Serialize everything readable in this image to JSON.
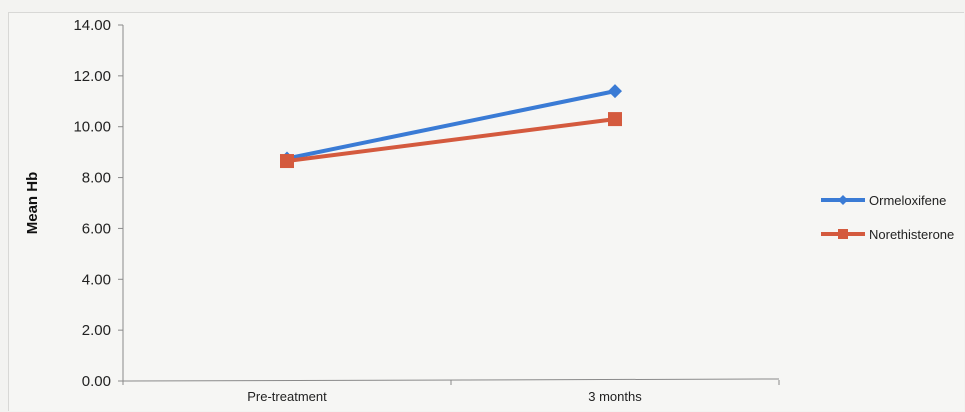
{
  "chart_data": {
    "type": "line",
    "categories": [
      "Pre-treatment",
      "3 months"
    ],
    "series": [
      {
        "name": "Ormeloxifene",
        "values": [
          8.75,
          11.4
        ],
        "color": "#3a7bd5",
        "marker": "diamond"
      },
      {
        "name": "Norethisterone",
        "values": [
          8.65,
          10.3
        ],
        "color": "#d45a3e",
        "marker": "square"
      }
    ],
    "y_ticks": [
      "0.00",
      "2.00",
      "4.00",
      "6.00",
      "8.00",
      "10.00",
      "12.00",
      "14.00"
    ],
    "ylim": [
      0,
      14
    ],
    "ylabel": "Mean Hb",
    "xlabel": "",
    "legend_position": "right",
    "grid": false
  }
}
